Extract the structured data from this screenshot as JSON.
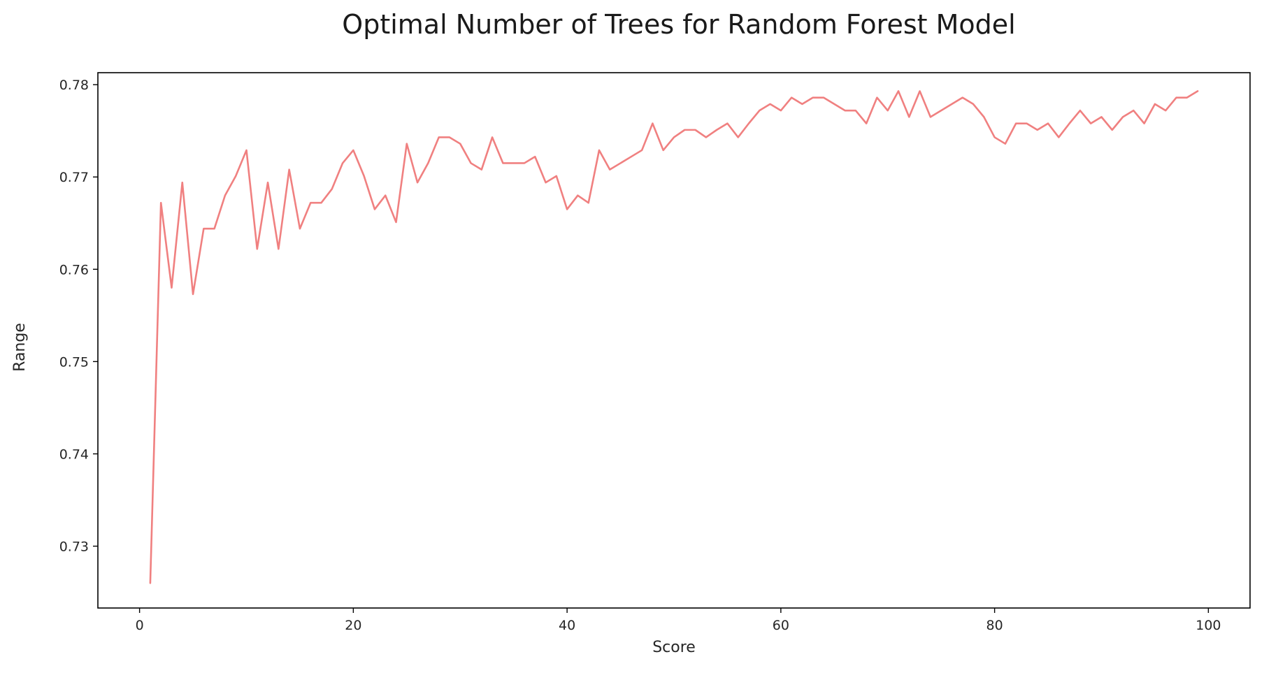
{
  "chart_data": {
    "type": "line",
    "title": "Optimal Number of Trees for Random Forest Model",
    "xlabel": "Score",
    "ylabel": "Range",
    "xlim": [
      -3.9,
      103.9
    ],
    "ylim": [
      0.7233,
      0.7813
    ],
    "xticks": [
      0,
      20,
      40,
      60,
      80,
      100
    ],
    "xtick_labels": [
      "0",
      "20",
      "40",
      "60",
      "80",
      "100"
    ],
    "yticks": [
      0.73,
      0.74,
      0.75,
      0.76,
      0.77,
      0.78
    ],
    "ytick_labels": [
      "0.73",
      "0.74",
      "0.75",
      "0.76",
      "0.77",
      "0.78"
    ],
    "grid": false,
    "series": [
      {
        "color": "#f08080",
        "x": [
          1,
          2,
          3,
          4,
          5,
          6,
          7,
          8,
          9,
          10,
          11,
          12,
          13,
          14,
          15,
          16,
          17,
          18,
          19,
          20,
          21,
          22,
          23,
          24,
          25,
          26,
          27,
          28,
          29,
          30,
          31,
          32,
          33,
          34,
          35,
          36,
          37,
          38,
          39,
          40,
          41,
          42,
          43,
          44,
          45,
          46,
          47,
          48,
          49,
          50,
          51,
          52,
          53,
          54,
          55,
          56,
          57,
          58,
          59,
          60,
          61,
          62,
          63,
          64,
          65,
          66,
          67,
          68,
          69,
          70,
          71,
          72,
          73,
          74,
          75,
          76,
          77,
          78,
          79,
          80,
          81,
          82,
          83,
          84,
          85,
          86,
          87,
          88,
          89,
          90,
          91,
          92,
          93,
          94,
          95,
          96,
          97,
          98,
          99
        ],
        "y": [
          0.726,
          0.7672,
          0.758,
          0.7694,
          0.7573,
          0.7644,
          0.7644,
          0.768,
          0.7701,
          0.7729,
          0.7622,
          0.7694,
          0.7622,
          0.7708,
          0.7644,
          0.7672,
          0.7672,
          0.7687,
          0.7715,
          0.7729,
          0.7701,
          0.7665,
          0.768,
          0.7651,
          0.7736,
          0.7694,
          0.7715,
          0.7743,
          0.7743,
          0.7736,
          0.7715,
          0.7708,
          0.7743,
          0.7715,
          0.7715,
          0.7715,
          0.7722,
          0.7694,
          0.7701,
          0.7665,
          0.768,
          0.7672,
          0.7729,
          0.7708,
          0.7715,
          0.7722,
          0.7729,
          0.7758,
          0.7729,
          0.7743,
          0.7751,
          0.7751,
          0.7743,
          0.7751,
          0.7758,
          0.7743,
          0.7758,
          0.7772,
          0.7779,
          0.7772,
          0.7786,
          0.7779,
          0.7786,
          0.7786,
          0.7779,
          0.7772,
          0.7772,
          0.7758,
          0.7786,
          0.7772,
          0.7793,
          0.7765,
          0.7793,
          0.7765,
          0.7772,
          0.7779,
          0.7786,
          0.7779,
          0.7765,
          0.7743,
          0.7736,
          0.7758,
          0.7758,
          0.7751,
          0.7758,
          0.7743,
          0.7758,
          0.7772,
          0.7758,
          0.7765,
          0.7751,
          0.7765,
          0.7772,
          0.7758,
          0.7779,
          0.7772,
          0.7786,
          0.7786,
          0.7793
        ]
      }
    ]
  }
}
